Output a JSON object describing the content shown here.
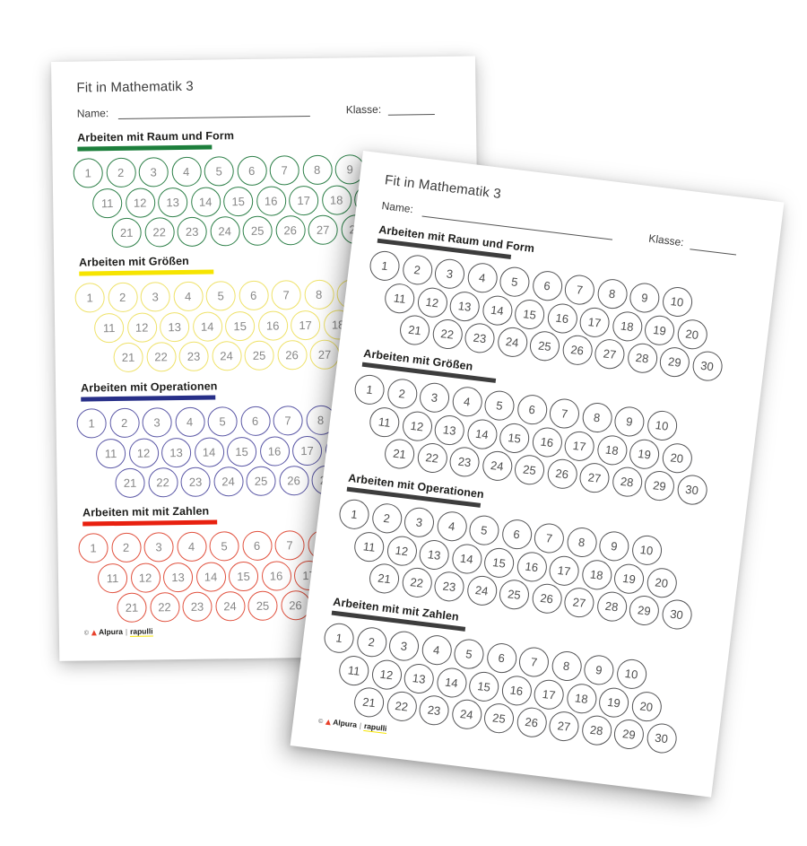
{
  "document_background": "#ffffff",
  "circle_rows": [
    [
      1,
      2,
      3,
      4,
      5,
      6,
      7,
      8,
      9,
      10
    ],
    [
      11,
      12,
      13,
      14,
      15,
      16,
      17,
      18,
      19,
      20
    ],
    [
      21,
      22,
      23,
      24,
      25,
      26,
      27,
      28,
      29,
      30
    ]
  ],
  "pages": [
    {
      "id": "back-page",
      "title": "Fit in Mathematik 3",
      "fields": {
        "name_label": "Name:",
        "class_label": "Klasse:"
      },
      "ink": {
        "number_color": "#878787",
        "heading_color": "#1d1d1b",
        "line_color": "#555555"
      },
      "sections": [
        {
          "heading": "Arbeiten mit Raum und Form",
          "bar_color": "#1d7f3c",
          "circle_color": "#2e8049"
        },
        {
          "heading": "Arbeiten mit Größen",
          "bar_color": "#f6e400",
          "circle_color": "#efe26a"
        },
        {
          "heading": "Arbeiten mit Operationen",
          "bar_color": "#272f88",
          "circle_color": "#5b58a6"
        },
        {
          "heading": "Arbeiten mit mit Zahlen",
          "bar_color": "#e8200f",
          "circle_color": "#e1523f"
        }
      ],
      "footer": {
        "copyright": "©",
        "brand_left": "Alpura",
        "separator": "|",
        "brand_right": "rapulli"
      }
    },
    {
      "id": "front-page",
      "title": "Fit in Mathematik 3",
      "fields": {
        "name_label": "Name:",
        "class_label": "Klasse:"
      },
      "ink": {
        "number_color": "#4d4d4d",
        "heading_color": "#1d1d1b",
        "line_color": "#555555"
      },
      "sections": [
        {
          "heading": "Arbeiten mit Raum und Form",
          "bar_color": "#3d3d3d",
          "circle_color": "#545456"
        },
        {
          "heading": "Arbeiten mit Größen",
          "bar_color": "#3d3d3d",
          "circle_color": "#545456"
        },
        {
          "heading": "Arbeiten mit Operationen",
          "bar_color": "#3d3d3d",
          "circle_color": "#545456"
        },
        {
          "heading": "Arbeiten mit mit Zahlen",
          "bar_color": "#3d3d3d",
          "circle_color": "#545456"
        }
      ],
      "footer": {
        "copyright": "©",
        "brand_left": "Alpura",
        "separator": "|",
        "brand_right": "rapulli"
      }
    }
  ]
}
